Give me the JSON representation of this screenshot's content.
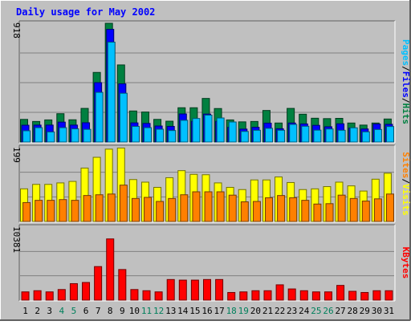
{
  "chart_data": {
    "type": "bar",
    "title": "Daily usage for May 2002",
    "categories": [
      "1",
      "2",
      "3",
      "4",
      "5",
      "6",
      "7",
      "8",
      "9",
      "10",
      "11",
      "12",
      "13",
      "14",
      "15",
      "16",
      "17",
      "18",
      "19",
      "20",
      "21",
      "22",
      "23",
      "24",
      "25",
      "26",
      "27",
      "28",
      "29",
      "30",
      "31"
    ],
    "weekend_days": [
      4,
      5,
      11,
      12,
      18,
      19,
      25,
      26
    ],
    "panels": [
      {
        "id": "hits-files-pages",
        "ymax_label": "918",
        "ylim": [
          0,
          918
        ],
        "grid": true,
        "series": [
          {
            "name": "Hits",
            "color": "#008040",
            "values": [
              175,
              159,
              171,
              219,
              172,
              260,
              538,
              918,
              596,
              240,
              232,
              175,
              161,
              265,
              265,
              337,
              259,
              171,
              156,
              159,
              244,
              147,
              260,
              215,
              184,
              181,
              183,
              147,
              131,
              147,
              178
            ]
          },
          {
            "name": "Files",
            "color": "#0000ff",
            "values": [
              130,
              131,
              131,
              154,
              131,
              149,
              459,
              871,
              450,
              148,
              144,
              124,
              121,
              217,
              160,
              216,
              160,
              114,
              100,
              114,
              146,
              103,
              147,
              140,
              129,
              118,
              141,
              108,
              101,
              139,
              137
            ]
          },
          {
            "name": "Pages",
            "color": "#00c0ff",
            "values": [
              87,
              111,
              78,
              111,
              102,
              98,
              384,
              772,
              377,
              121,
              111,
              99,
              89,
              168,
              182,
              208,
              186,
              155,
              82,
              91,
              106,
              91,
              136,
              122,
              92,
              101,
              91,
              110,
              79,
              97,
              120
            ]
          }
        ]
      },
      {
        "id": "visits-sites",
        "ymax_label": "199",
        "ylim": [
          0,
          199
        ],
        "grid": true,
        "series": [
          {
            "name": "Visits",
            "color": "#ffff00",
            "values": [
              88,
              100,
              100,
              104,
              108,
              144,
              173,
              195,
              198,
              113,
              106,
              92,
              118,
              137,
              127,
              126,
              104,
              92,
              86,
              112,
              112,
              120,
              105,
              86,
              88,
              94,
              106,
              96,
              82,
              114,
              130
            ]
          },
          {
            "name": "Sites",
            "color": "#ff8000",
            "values": [
              51,
              57,
              57,
              59,
              57,
              70,
              72,
              74,
              98,
              62,
              65,
              54,
              62,
              72,
              80,
              80,
              80,
              71,
              53,
              54,
              64,
              70,
              64,
              57,
              47,
              48,
              71,
              62,
              55,
              61,
              74
            ]
          }
        ]
      },
      {
        "id": "kbytes",
        "ymax_label": "10381",
        "ylim": [
          0,
          10381
        ],
        "grid": true,
        "series": [
          {
            "name": "KBytes",
            "color": "#ff0000",
            "values": [
              1172,
              1340,
              1172,
              1507,
              2343,
              2510,
              4770,
              8703,
              4350,
              1507,
              1339,
              1172,
              2930,
              2846,
              2846,
              2930,
              2930,
              1088,
              1172,
              1339,
              1339,
              2177,
              1590,
              1339,
              1172,
              1172,
              2093,
              1255,
              1088,
              1339,
              1339
            ]
          }
        ]
      }
    ],
    "colors": {
      "background": "#c0c0c0",
      "title": "#0000ff",
      "weekday_label": "#000000",
      "weekend_label": "#00805c",
      "grid": "#808080"
    }
  }
}
